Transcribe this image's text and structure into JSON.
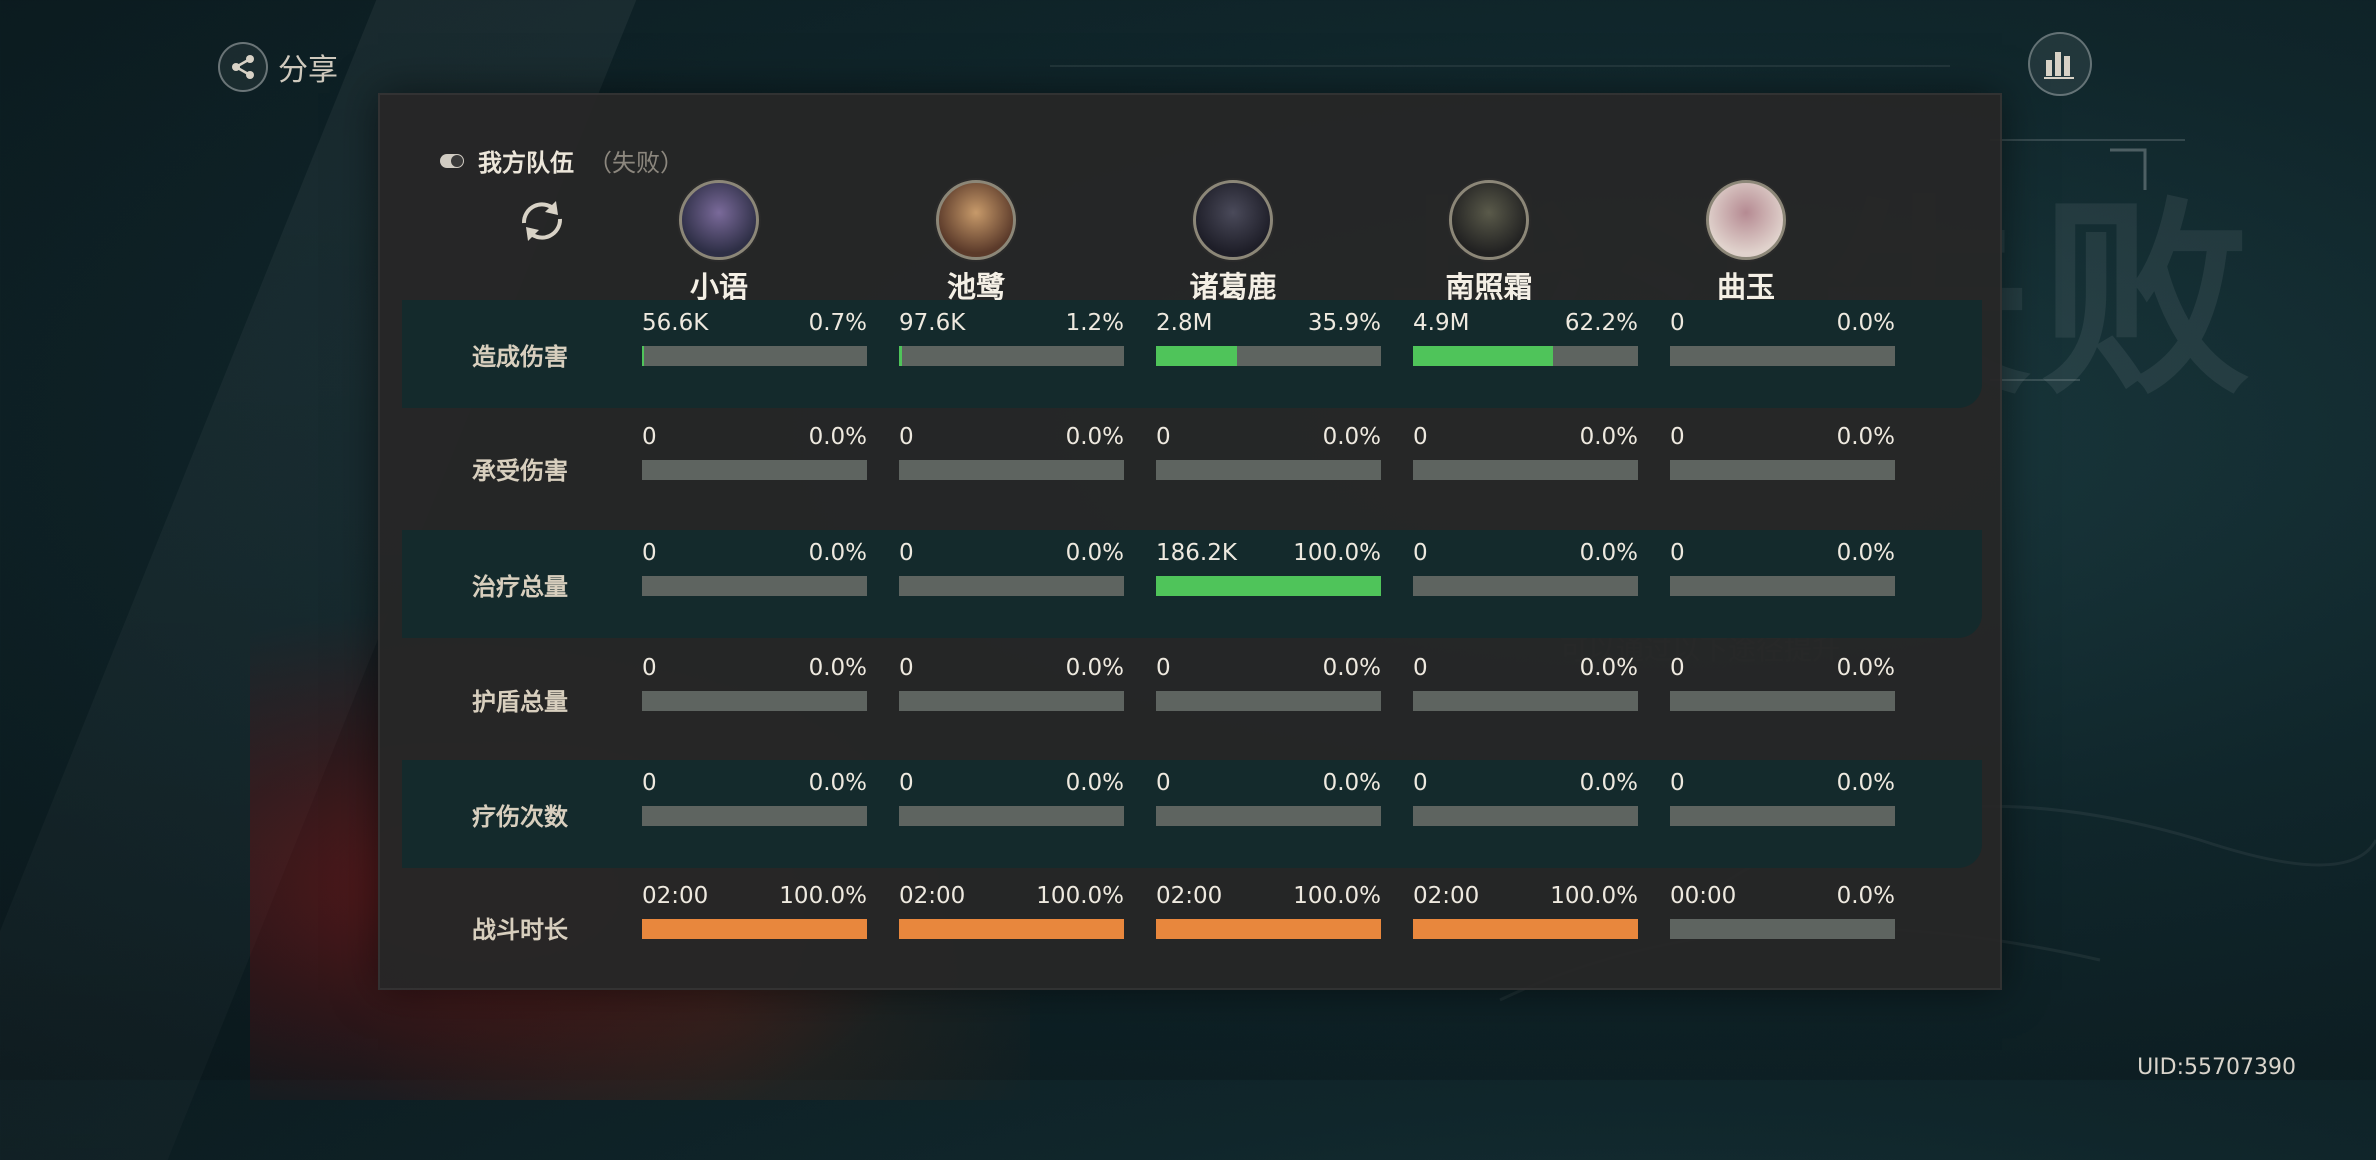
{
  "share": {
    "label": "分享"
  },
  "uid": "UID:55707390",
  "team": {
    "name": "我方队伍",
    "status": "（失败）"
  },
  "colors": {
    "green": "#4fc45a",
    "orange": "#e8873d",
    "bar_bg": "#5e6460"
  },
  "characters": [
    {
      "name": "小语"
    },
    {
      "name": "池鹭"
    },
    {
      "name": "诸葛鹿"
    },
    {
      "name": "南照霜"
    },
    {
      "name": "曲玉"
    }
  ],
  "rows": [
    {
      "label": "造成伤害",
      "color": "green",
      "cells": [
        {
          "value": "56.6K",
          "pct": "0.7%",
          "fraction": 0.007
        },
        {
          "value": "97.6K",
          "pct": "1.2%",
          "fraction": 0.012
        },
        {
          "value": "2.8M",
          "pct": "35.9%",
          "fraction": 0.359
        },
        {
          "value": "4.9M",
          "pct": "62.2%",
          "fraction": 0.622
        },
        {
          "value": "0",
          "pct": "0.0%",
          "fraction": 0
        }
      ]
    },
    {
      "label": "承受伤害",
      "color": "green",
      "cells": [
        {
          "value": "0",
          "pct": "0.0%",
          "fraction": 0
        },
        {
          "value": "0",
          "pct": "0.0%",
          "fraction": 0
        },
        {
          "value": "0",
          "pct": "0.0%",
          "fraction": 0
        },
        {
          "value": "0",
          "pct": "0.0%",
          "fraction": 0
        },
        {
          "value": "0",
          "pct": "0.0%",
          "fraction": 0
        }
      ]
    },
    {
      "label": "治疗总量",
      "color": "green",
      "cells": [
        {
          "value": "0",
          "pct": "0.0%",
          "fraction": 0
        },
        {
          "value": "0",
          "pct": "0.0%",
          "fraction": 0
        },
        {
          "value": "186.2K",
          "pct": "100.0%",
          "fraction": 1
        },
        {
          "value": "0",
          "pct": "0.0%",
          "fraction": 0
        },
        {
          "value": "0",
          "pct": "0.0%",
          "fraction": 0
        }
      ]
    },
    {
      "label": "护盾总量",
      "color": "green",
      "cells": [
        {
          "value": "0",
          "pct": "0.0%",
          "fraction": 0
        },
        {
          "value": "0",
          "pct": "0.0%",
          "fraction": 0
        },
        {
          "value": "0",
          "pct": "0.0%",
          "fraction": 0
        },
        {
          "value": "0",
          "pct": "0.0%",
          "fraction": 0
        },
        {
          "value": "0",
          "pct": "0.0%",
          "fraction": 0
        }
      ]
    },
    {
      "label": "疗伤次数",
      "color": "green",
      "cells": [
        {
          "value": "0",
          "pct": "0.0%",
          "fraction": 0
        },
        {
          "value": "0",
          "pct": "0.0%",
          "fraction": 0
        },
        {
          "value": "0",
          "pct": "0.0%",
          "fraction": 0
        },
        {
          "value": "0",
          "pct": "0.0%",
          "fraction": 0
        },
        {
          "value": "0",
          "pct": "0.0%",
          "fraction": 0
        }
      ]
    },
    {
      "label": "战斗时长",
      "color": "orange",
      "cells": [
        {
          "value": "02:00",
          "pct": "100.0%",
          "fraction": 1
        },
        {
          "value": "02:00",
          "pct": "100.0%",
          "fraction": 1
        },
        {
          "value": "02:00",
          "pct": "100.0%",
          "fraction": 1
        },
        {
          "value": "02:00",
          "pct": "100.0%",
          "fraction": 1
        },
        {
          "value": "00:00",
          "pct": "0.0%",
          "fraction": 0
        }
      ]
    }
  ]
}
